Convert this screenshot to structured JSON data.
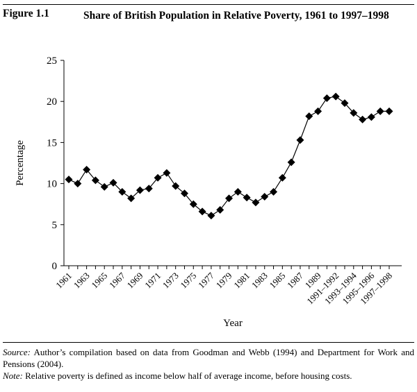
{
  "figure": {
    "label": "Figure 1.1",
    "title": "Share of British Population in Relative Poverty, 1961 to 1997–1998"
  },
  "chart_data": {
    "type": "line",
    "title": "Share of British Population in Relative Poverty, 1961 to 1997–1998",
    "xlabel": "Year",
    "ylabel": "Percentage",
    "ylim": [
      0,
      25
    ],
    "yticks": [
      "0",
      "5",
      "10",
      "15",
      "20",
      "25"
    ],
    "categories": [
      "1961",
      "1962",
      "1963",
      "1964",
      "1965",
      "1966",
      "1967",
      "1968",
      "1969",
      "1970",
      "1971",
      "1972",
      "1973",
      "1974",
      "1975",
      "1976",
      "1977",
      "1978",
      "1979",
      "1980",
      "1981",
      "1982",
      "1983",
      "1984",
      "1985",
      "1986",
      "1987",
      "1988",
      "1989",
      "1990",
      "1991–1992",
      "1992–1993",
      "1993–1994",
      "1994–1995",
      "1995–1996",
      "1996–1997",
      "1997–1998"
    ],
    "xtick_labels": [
      "1961",
      "1963",
      "1965",
      "1967",
      "1969",
      "1971",
      "1973",
      "1975",
      "1977",
      "1979",
      "1981",
      "1983",
      "1985",
      "1987",
      "1989",
      "1991–1992",
      "1993–1994",
      "1995–1996",
      "1997–1998"
    ],
    "series": [
      {
        "name": "Relative poverty share",
        "marker": "diamond",
        "values": [
          10.5,
          10.0,
          11.7,
          10.4,
          9.6,
          10.1,
          9.0,
          8.2,
          9.2,
          9.4,
          10.7,
          11.3,
          9.7,
          8.8,
          7.5,
          6.6,
          6.1,
          6.8,
          8.2,
          9.0,
          8.3,
          7.7,
          8.4,
          9.0,
          10.7,
          12.6,
          15.3,
          18.2,
          18.8,
          20.4,
          20.6,
          19.8,
          18.6,
          17.8,
          18.1,
          18.8,
          18.8
        ]
      }
    ],
    "grid": false,
    "legend": "none"
  },
  "notes": {
    "source_label": "Source:",
    "source_text": "Author’s compilation based on data from Goodman and Webb (1994) and Department for Work and Pensions (2004).",
    "note_label": "Note:",
    "note_text": "Relative poverty is defined as income below half of average income, before housing costs."
  }
}
